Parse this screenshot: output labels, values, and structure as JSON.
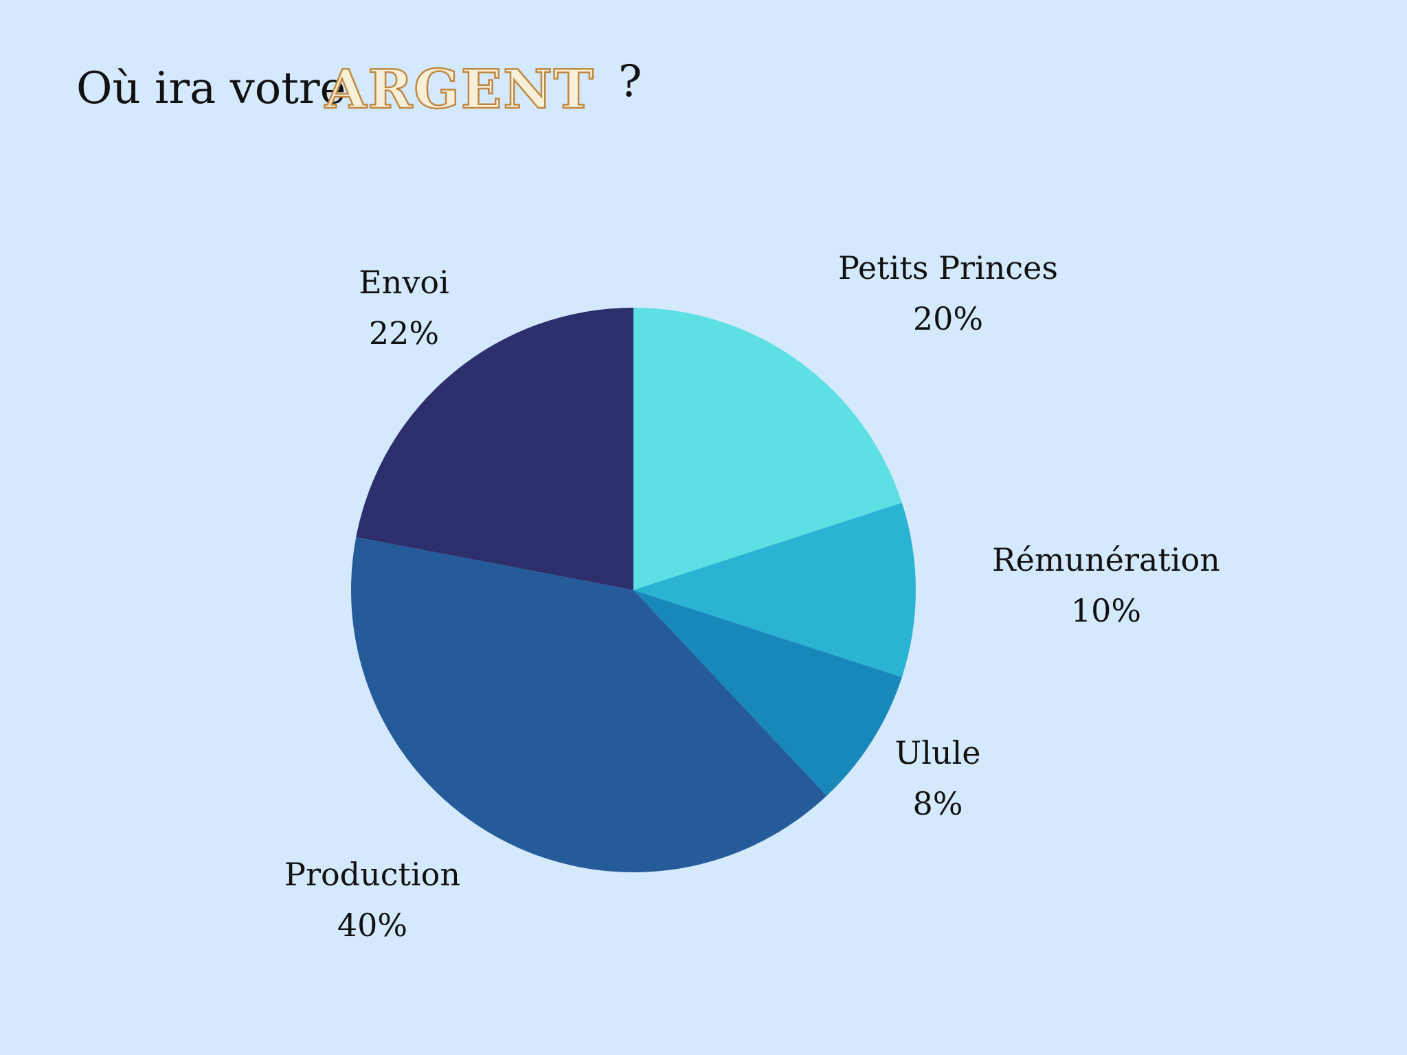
{
  "chart_data": {
    "type": "pie",
    "title": "Où ira votre",
    "title_highlight": "ARGENT",
    "title_end": "?",
    "categories": [
      "Petits Princes",
      "Rémunération",
      "Ulule",
      "Production",
      "Envoi"
    ],
    "values": [
      20,
      10,
      8,
      40,
      22
    ],
    "value_labels": [
      "20%",
      "10%",
      "8%",
      "40%",
      "22%"
    ],
    "colors": [
      "#5ce0e4",
      "#2bb3d4",
      "#1888ba",
      "#255b98",
      "#2d2f6c"
    ]
  }
}
